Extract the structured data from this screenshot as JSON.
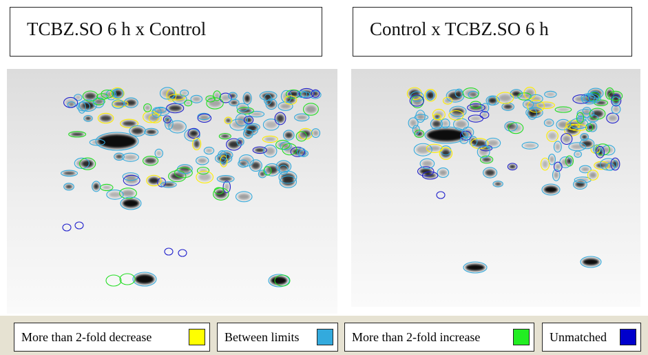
{
  "panels": [
    {
      "title": "TCBZ.SO 6 h x Control"
    },
    {
      "title": "Control x TCBZ.SO 6 h"
    }
  ],
  "legend": [
    {
      "label": "More than 2-fold decrease"
    },
    {
      "label": "Between limits"
    },
    {
      "label": "More than 2-fold increase"
    },
    {
      "label": "Unmatched"
    }
  ]
}
